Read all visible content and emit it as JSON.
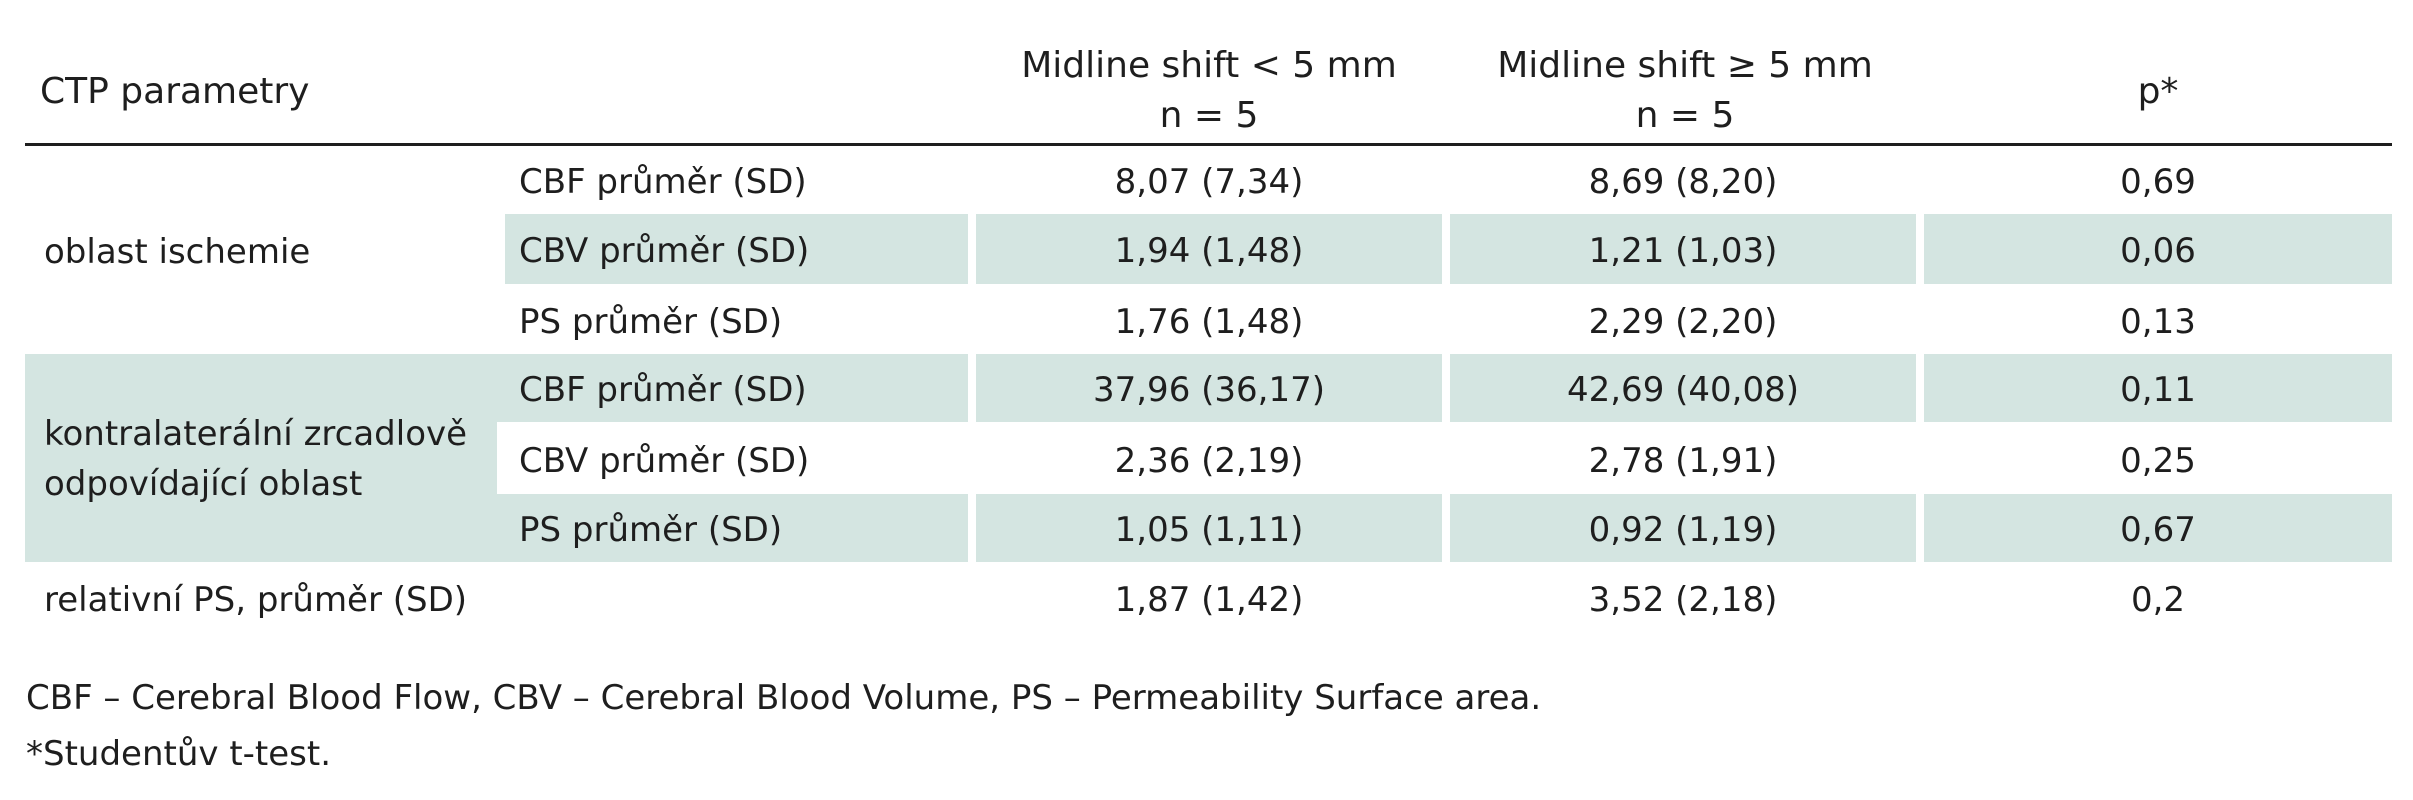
{
  "table": {
    "header": {
      "param": "CTP parametry",
      "col1_line1": "Midline shift < 5 mm",
      "col1_line2": "n = 5",
      "col2_line1": "Midline shift ≥ 5 mm",
      "col2_line2": "n = 5",
      "p": "p*"
    },
    "groups": [
      {
        "label": "oblast ischemie",
        "rows": [
          {
            "metric": "CBF průměr (SD)",
            "v1": "8,07 (7,34)",
            "v2": "8,69 (8,20)",
            "p": "0,69"
          },
          {
            "metric": "CBV průměr (SD)",
            "v1": "1,94 (1,48)",
            "v2": "1,21 (1,03)",
            "p": "0,06"
          },
          {
            "metric": "PS průměr (SD)",
            "v1": "1,76 (1,48)",
            "v2": "2,29 (2,20)",
            "p": "0,13"
          }
        ]
      },
      {
        "label_line1": "kontralaterální  zrcadlově",
        "label_line2": "odpovídající oblast",
        "rows": [
          {
            "metric": "CBF průměr (SD)",
            "v1": "37,96 (36,17)",
            "v2": "42,69 (40,08)",
            "p": "0,11"
          },
          {
            "metric": "CBV průměr (SD)",
            "v1": "2,36 (2,19)",
            "v2": "2,78 (1,91)",
            "p": "0,25"
          },
          {
            "metric": "PS průměr (SD)",
            "v1": "1,05 (1,11)",
            "v2": "0,92 (1,19)",
            "p": "0,67"
          }
        ]
      }
    ],
    "last_row": {
      "label": "relativní PS, průměr (SD)",
      "v1": "1,87 (1,42)",
      "v2": "3,52 (2,18)",
      "p": "0,2"
    }
  },
  "footnotes": {
    "abbreviations": "CBF – Cerebral Blood Flow, CBV – Cerebral Blood Volume, PS – Permeability Surface area.",
    "test": "*Studentův t-test."
  },
  "colors": {
    "shade": "#d4e5e1",
    "text": "#1e1e1e"
  }
}
